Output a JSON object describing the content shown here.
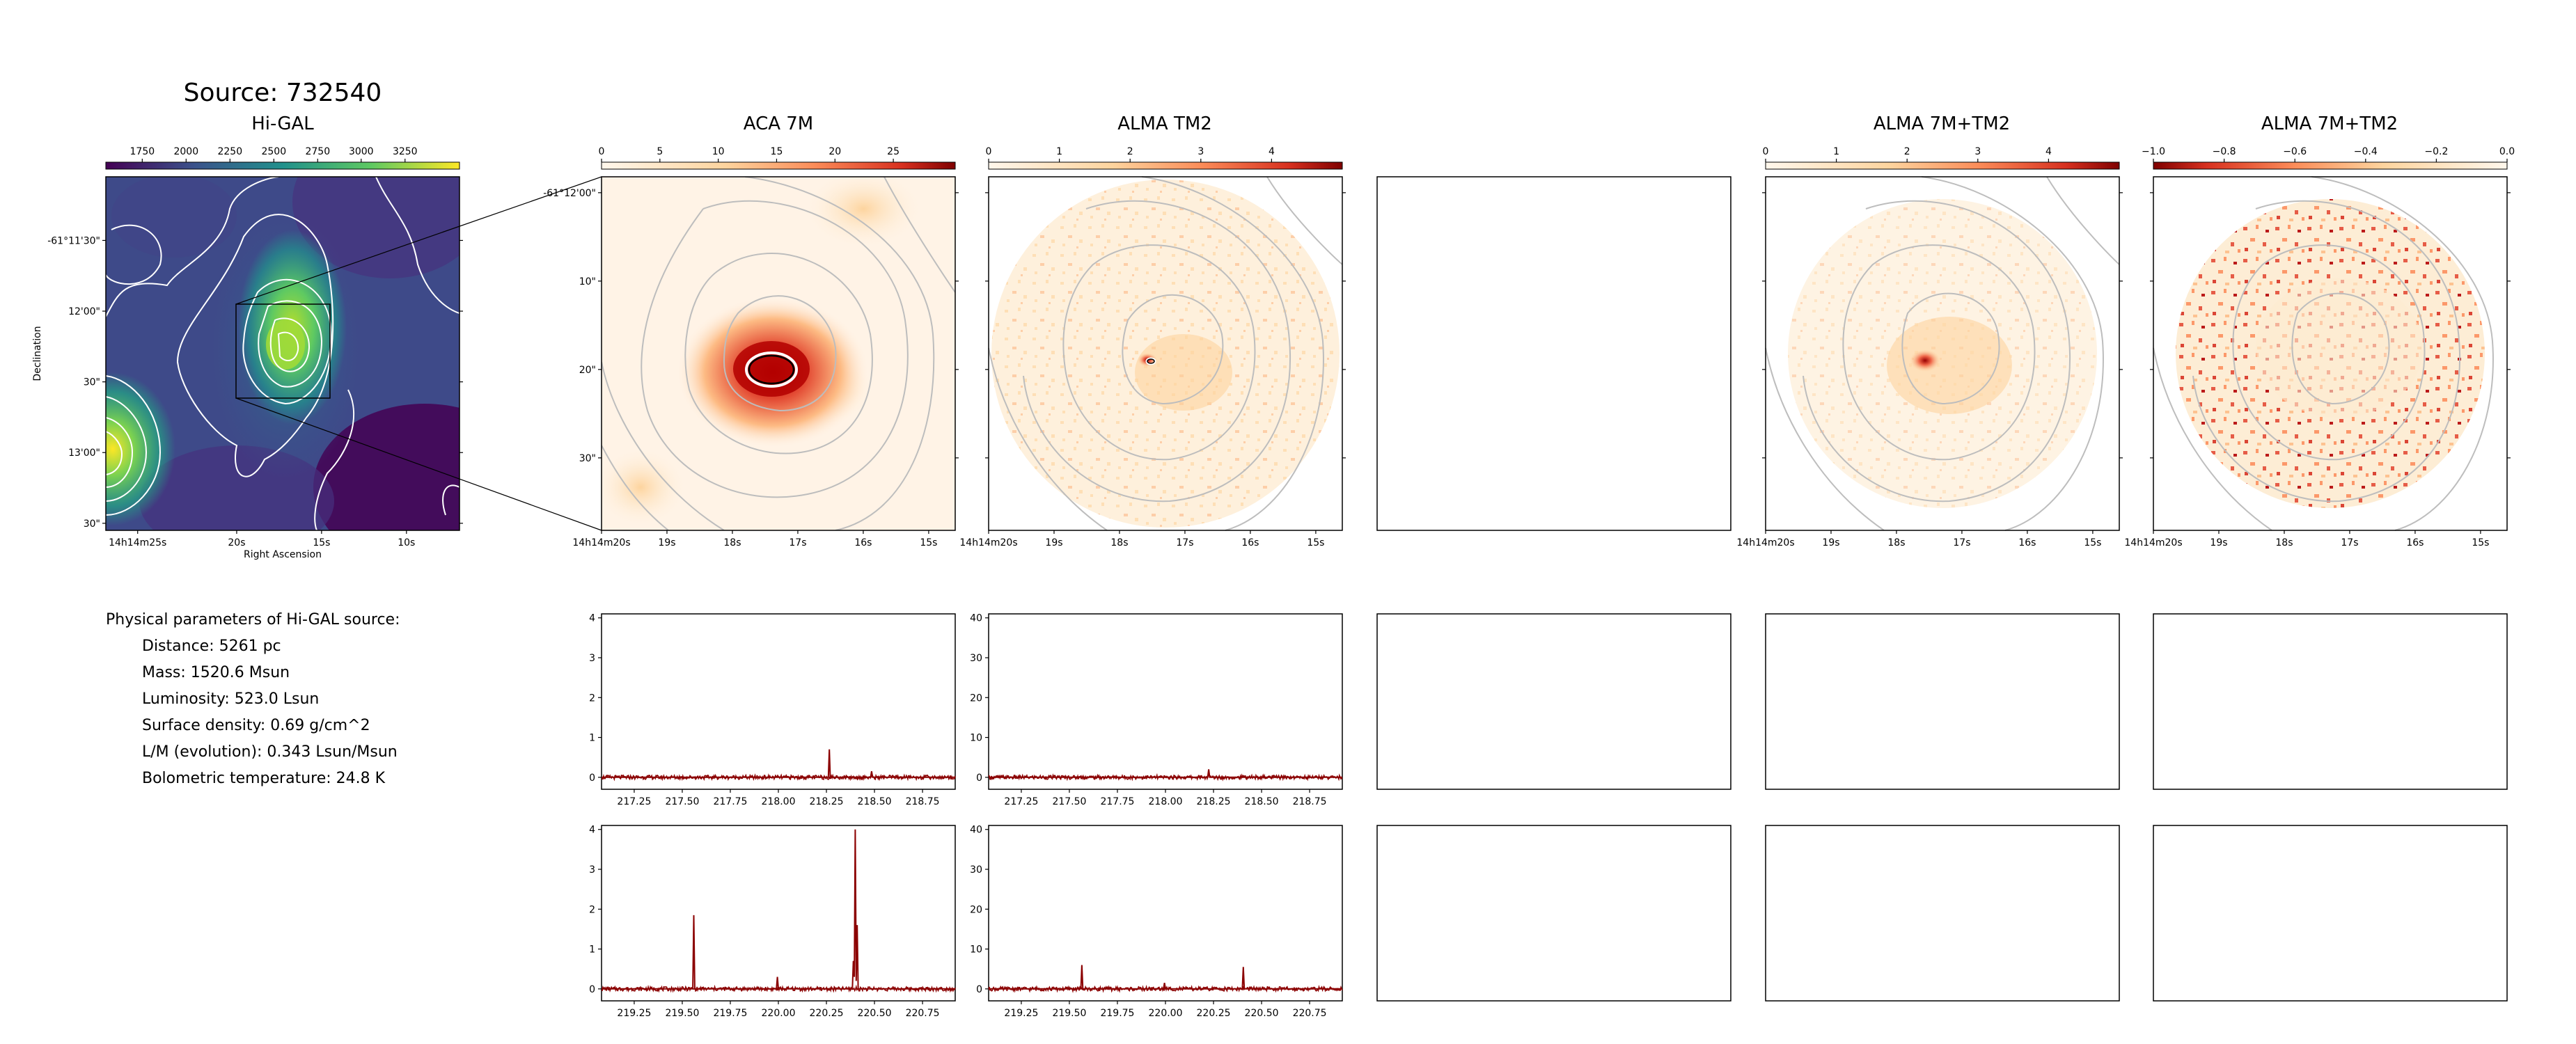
{
  "figure": {
    "title": "Source: 732540",
    "params_heading": "Physical parameters of Hi-GAL source:",
    "params": [
      "Distance: 5261 pc",
      "Mass: 1520.6 Msun",
      "Luminosity: 523.0 Lsun",
      "Surface density: 0.69 g/cm^2",
      "L/M (evolution): 0.343 Lsun/Msun",
      "Bolometric temperature: 24.8 K"
    ]
  },
  "chart_data": [
    {
      "type": "heatmap",
      "title": "Hi-GAL",
      "colormap": "viridis",
      "colorbar_ticks": [
        "1750",
        "2000",
        "2250",
        "2500",
        "2750",
        "3000",
        "3250"
      ],
      "xlabel": "Right Ascension",
      "ylabel": "Declination",
      "xticks": [
        "14h14m25s",
        "20s",
        "15s",
        "10s"
      ],
      "yticks": [
        "-61°11'30\"",
        "12'00\"",
        "30\"",
        "13'00\"",
        "30\""
      ],
      "contours": "white"
    },
    {
      "type": "heatmap",
      "title": "ACA 7M",
      "colormap": "OrRd",
      "colorbar_ticks": [
        "0",
        "5",
        "10",
        "15",
        "20",
        "25"
      ],
      "xticks": [
        "14h14m20s",
        "19s",
        "18s",
        "17s",
        "16s",
        "15s"
      ],
      "yticks": [
        "-61°12'00\"",
        "10\"",
        "20\"",
        "30\""
      ]
    },
    {
      "type": "heatmap",
      "title": "ALMA TM2",
      "colormap": "OrRd",
      "colorbar_ticks": [
        "0",
        "1",
        "2",
        "3",
        "4"
      ],
      "xticks": [
        "14h14m20s",
        "19s",
        "18s",
        "17s",
        "16s",
        "15s"
      ]
    },
    {
      "type": "heatmap",
      "title": "ALMA 7M+TM2",
      "colormap": "OrRd",
      "colorbar_ticks": [
        "0",
        "1",
        "2",
        "3",
        "4"
      ],
      "xticks": [
        "14h14m20s",
        "19s",
        "18s",
        "17s",
        "16s",
        "15s"
      ]
    },
    {
      "type": "heatmap",
      "title": "ALMA 7M+TM2",
      "colormap": "OrRd_r",
      "colorbar_ticks": [
        "−1.0",
        "−0.8",
        "−0.6",
        "−0.4",
        "−0.2",
        "0.0"
      ],
      "xticks": [
        "14h14m20s",
        "19s",
        "18s",
        "17s",
        "16s",
        "15s"
      ]
    },
    {
      "type": "line",
      "color": "#8b0000",
      "xlim": [
        217.08,
        218.92
      ],
      "ylim": [
        -0.3,
        4.1
      ],
      "xticks": [
        "217.25",
        "217.50",
        "217.75",
        "218.00",
        "218.25",
        "218.50",
        "218.75"
      ],
      "yticks": [
        "0",
        "1",
        "2",
        "3",
        "4"
      ],
      "x": [
        217.08,
        218.26,
        218.265,
        218.27,
        218.48,
        218.485,
        218.49,
        218.92
      ],
      "y": [
        0,
        0,
        0.7,
        0,
        0,
        0.15,
        0,
        0
      ]
    },
    {
      "type": "line",
      "color": "#8b0000",
      "xlim": [
        217.08,
        218.92
      ],
      "ylim": [
        -3,
        41
      ],
      "xticks": [
        "217.25",
        "217.50",
        "217.75",
        "218.00",
        "218.25",
        "218.50",
        "218.75"
      ],
      "yticks": [
        "0",
        "10",
        "20",
        "30",
        "40"
      ],
      "x": [
        217.08,
        218.22,
        218.225,
        218.23,
        218.92
      ],
      "y": [
        0,
        0,
        2,
        0,
        0
      ]
    },
    {
      "type": "line",
      "color": "#8b0000",
      "xlim": [
        219.08,
        220.92
      ],
      "ylim": [
        -0.3,
        4.1
      ],
      "xticks": [
        "219.25",
        "219.50",
        "219.75",
        "220.00",
        "220.25",
        "220.50",
        "220.75"
      ],
      "yticks": [
        "0",
        "1",
        "2",
        "3",
        "4"
      ],
      "x": [
        219.08,
        219.555,
        219.56,
        219.565,
        219.99,
        219.995,
        220.0,
        220.385,
        220.39,
        220.395,
        220.4,
        220.405,
        220.41,
        220.415,
        220.92
      ],
      "y": [
        0,
        0,
        1.85,
        0,
        0,
        0.3,
        0,
        0,
        0.7,
        0.3,
        4.0,
        0.2,
        1.6,
        0,
        0
      ]
    },
    {
      "type": "line",
      "color": "#8b0000",
      "xlim": [
        219.08,
        220.92
      ],
      "ylim": [
        -3,
        41
      ],
      "xticks": [
        "219.25",
        "219.50",
        "219.75",
        "220.00",
        "220.25",
        "220.50",
        "220.75"
      ],
      "yticks": [
        "0",
        "10",
        "20",
        "30",
        "40"
      ],
      "x": [
        219.08,
        219.56,
        219.565,
        219.57,
        219.99,
        219.995,
        220.0,
        220.4,
        220.405,
        220.41,
        220.92
      ],
      "y": [
        0,
        0,
        6,
        0,
        0,
        1.5,
        0,
        0,
        5.5,
        0,
        0
      ]
    }
  ]
}
